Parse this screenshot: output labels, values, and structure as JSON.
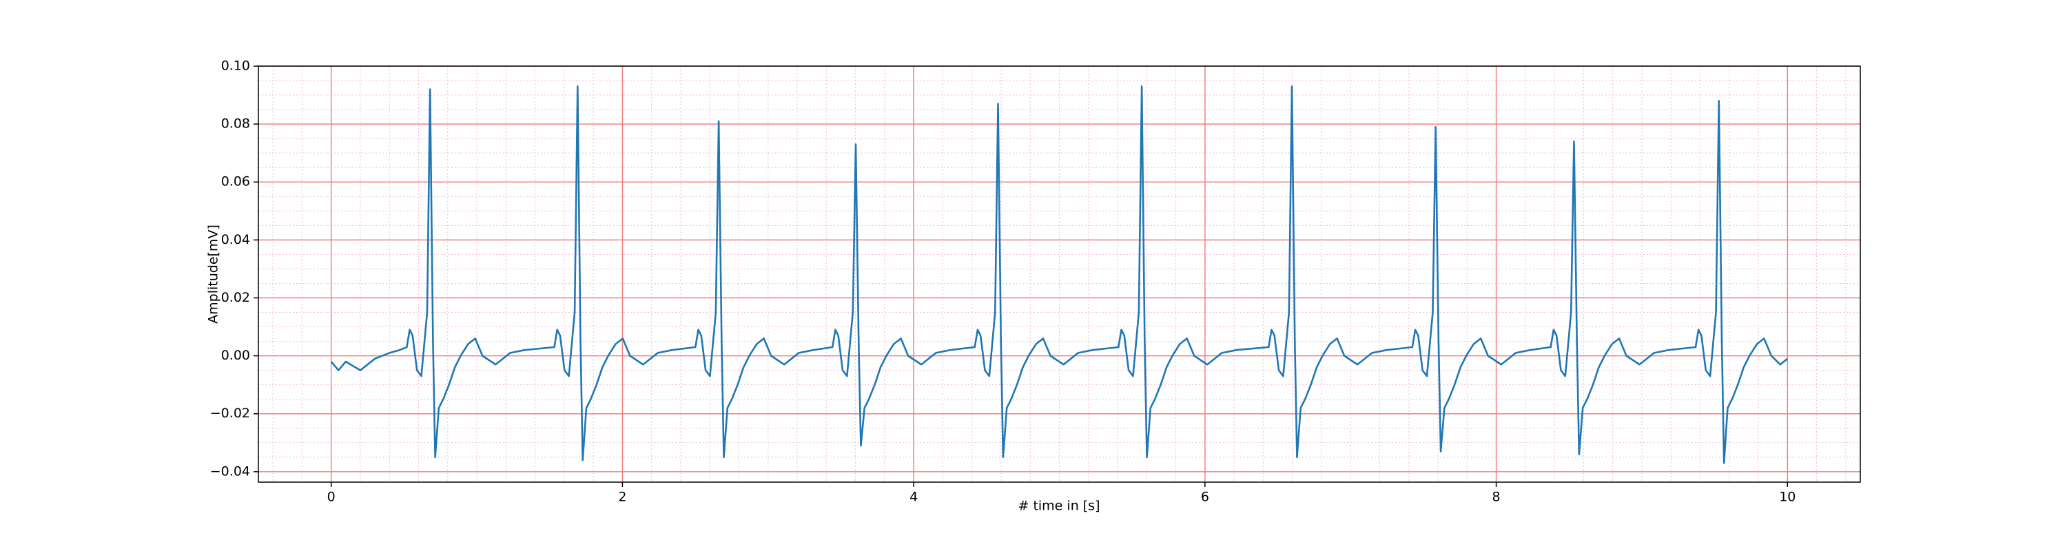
{
  "chart_data": {
    "type": "line",
    "xlabel": "# time in [s]",
    "ylabel": "Amplitude[mV]",
    "color": "#1f77b4",
    "xlim": [
      -0.5,
      10.5
    ],
    "xticks": [
      0,
      2,
      4,
      6,
      8,
      10
    ],
    "ylim": [
      -0.0436,
      0.1
    ],
    "yticks": [
      {
        "value": -0.04,
        "label": "−0.04"
      },
      {
        "value": -0.02,
        "label": "−0.02"
      },
      {
        "value": 0,
        "label": "0.00"
      },
      {
        "value": 0.02,
        "label": "0.02"
      },
      {
        "value": 0.04,
        "label": "0.04"
      },
      {
        "value": 0.06,
        "label": "0.06"
      },
      {
        "value": 0.08,
        "label": "0.08"
      },
      {
        "value": 0.1,
        "label": "0.10"
      }
    ],
    "grid": true,
    "grid_color": "#f08080",
    "minor_grid_color": "#f4b8d8",
    "minor_xstep": 0.2,
    "minor_ystep": 0.005,
    "x": [
      0,
      0.05,
      0.1,
      0.2,
      0.3,
      0.4,
      0.47,
      0.519,
      0.539,
      0.559,
      0.589,
      0.619,
      0.659,
      0.679,
      0.699,
      0.714,
      0.739,
      0.769,
      0.809,
      0.849,
      0.889,
      0.939,
      0.989,
      1.039,
      1.129,
      1.229,
      1.329,
      1.532,
      1.552,
      1.572,
      1.602,
      1.632,
      1.672,
      1.692,
      1.712,
      1.727,
      1.752,
      1.782,
      1.822,
      1.862,
      1.902,
      1.952,
      2.002,
      2.052,
      2.142,
      2.242,
      2.342,
      2.501,
      2.521,
      2.541,
      2.571,
      2.601,
      2.641,
      2.661,
      2.681,
      2.696,
      2.721,
      2.751,
      2.791,
      2.831,
      2.871,
      2.921,
      2.971,
      3.021,
      3.111,
      3.211,
      3.311,
      3.442,
      3.462,
      3.482,
      3.512,
      3.542,
      3.582,
      3.602,
      3.622,
      3.637,
      3.662,
      3.692,
      3.732,
      3.772,
      3.812,
      3.862,
      3.912,
      3.962,
      4.052,
      4.152,
      4.252,
      4.419,
      4.439,
      4.459,
      4.489,
      4.519,
      4.559,
      4.579,
      4.599,
      4.614,
      4.639,
      4.669,
      4.709,
      4.749,
      4.789,
      4.839,
      4.889,
      4.939,
      5.029,
      5.129,
      5.229,
      5.406,
      5.426,
      5.446,
      5.476,
      5.506,
      5.546,
      5.566,
      5.586,
      5.601,
      5.626,
      5.656,
      5.696,
      5.736,
      5.776,
      5.826,
      5.876,
      5.926,
      6.016,
      6.116,
      6.216,
      6.437,
      6.457,
      6.477,
      6.507,
      6.537,
      6.577,
      6.597,
      6.617,
      6.632,
      6.657,
      6.687,
      6.727,
      6.767,
      6.807,
      6.857,
      6.907,
      6.957,
      7.047,
      7.147,
      7.247,
      7.424,
      7.444,
      7.464,
      7.494,
      7.524,
      7.564,
      7.584,
      7.604,
      7.619,
      7.644,
      7.674,
      7.714,
      7.754,
      7.794,
      7.844,
      7.894,
      7.944,
      8.034,
      8.134,
      8.234,
      8.374,
      8.394,
      8.414,
      8.444,
      8.474,
      8.514,
      8.534,
      8.554,
      8.569,
      8.594,
      8.624,
      8.664,
      8.704,
      8.744,
      8.794,
      8.844,
      8.894,
      8.984,
      9.084,
      9.184,
      9.369,
      9.389,
      9.409,
      9.439,
      9.469,
      9.509,
      9.529,
      9.549,
      9.564,
      9.589,
      9.619,
      9.659,
      9.699,
      9.739,
      9.789,
      9.839,
      9.889,
      9.95,
      10.0
    ],
    "values": [
      -0.002,
      -0.005,
      -0.002,
      -0.005,
      -0.001,
      0.001,
      0.002,
      0.003,
      0.009,
      0.007,
      -0.005,
      -0.007,
      0.015,
      0.092,
      0.005,
      -0.035,
      -0.018,
      -0.015,
      -0.01,
      -0.004,
      0.0,
      0.004,
      0.006,
      0.0,
      -0.003,
      0.001,
      0.002,
      0.003,
      0.009,
      0.007,
      -0.005,
      -0.007,
      0.015,
      0.093,
      0.005,
      -0.036,
      -0.018,
      -0.015,
      -0.01,
      -0.004,
      0.0,
      0.004,
      0.006,
      0.0,
      -0.003,
      0.001,
      0.002,
      0.003,
      0.009,
      0.007,
      -0.005,
      -0.007,
      0.015,
      0.081,
      0.005,
      -0.035,
      -0.018,
      -0.015,
      -0.01,
      -0.004,
      0.0,
      0.004,
      0.006,
      0.0,
      -0.003,
      0.001,
      0.002,
      0.003,
      0.009,
      0.007,
      -0.005,
      -0.007,
      0.015,
      0.073,
      0.005,
      -0.031,
      -0.018,
      -0.015,
      -0.01,
      -0.004,
      0.0,
      0.004,
      0.006,
      0.0,
      -0.003,
      0.001,
      0.002,
      0.003,
      0.009,
      0.007,
      -0.005,
      -0.007,
      0.015,
      0.087,
      0.005,
      -0.035,
      -0.018,
      -0.015,
      -0.01,
      -0.004,
      0.0,
      0.004,
      0.006,
      0.0,
      -0.003,
      0.001,
      0.002,
      0.003,
      0.009,
      0.007,
      -0.005,
      -0.007,
      0.015,
      0.093,
      0.005,
      -0.035,
      -0.018,
      -0.015,
      -0.01,
      -0.004,
      0.0,
      0.004,
      0.006,
      0.0,
      -0.003,
      0.001,
      0.002,
      0.003,
      0.009,
      0.007,
      -0.005,
      -0.007,
      0.015,
      0.093,
      0.005,
      -0.035,
      -0.018,
      -0.015,
      -0.01,
      -0.004,
      0.0,
      0.004,
      0.006,
      0.0,
      -0.003,
      0.001,
      0.002,
      0.003,
      0.009,
      0.007,
      -0.005,
      -0.007,
      0.015,
      0.079,
      0.005,
      -0.033,
      -0.018,
      -0.015,
      -0.01,
      -0.004,
      0.0,
      0.004,
      0.006,
      0.0,
      -0.003,
      0.001,
      0.002,
      0.003,
      0.009,
      0.007,
      -0.005,
      -0.007,
      0.015,
      0.074,
      0.005,
      -0.034,
      -0.018,
      -0.015,
      -0.01,
      -0.004,
      0.0,
      0.004,
      0.006,
      0.0,
      -0.003,
      0.001,
      0.002,
      0.003,
      0.009,
      0.007,
      -0.005,
      -0.007,
      0.015,
      0.088,
      0.005,
      -0.037,
      -0.018,
      -0.015,
      -0.01,
      -0.004,
      0.0,
      0.004,
      0.006,
      0.0,
      -0.003,
      -0.001
    ]
  }
}
